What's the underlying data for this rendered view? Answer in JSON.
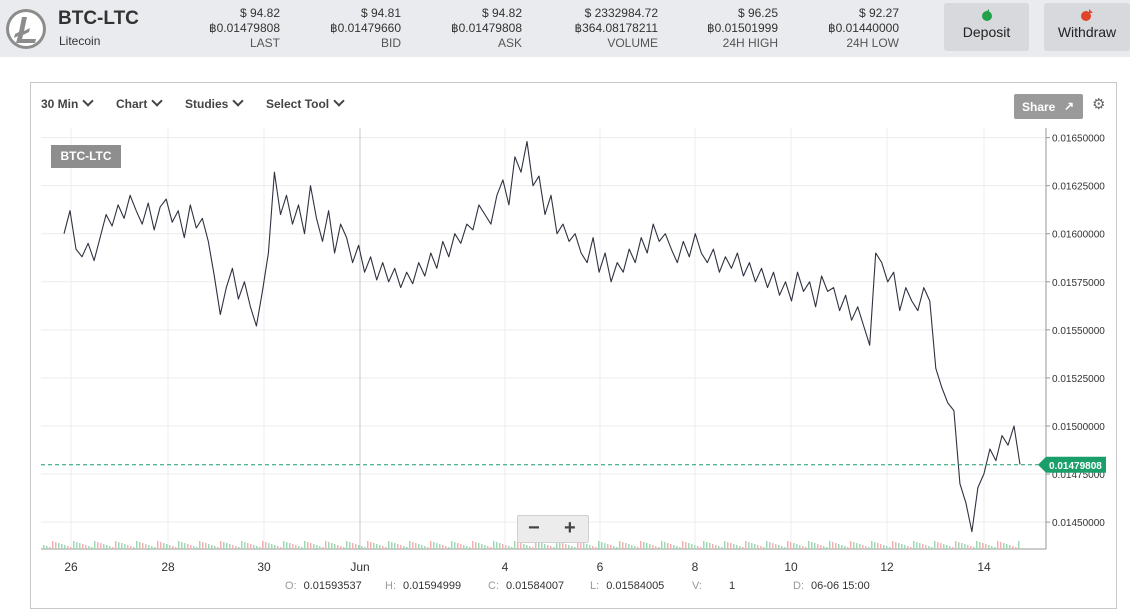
{
  "header": {
    "market": "BTC-LTC",
    "currency_name": "Litecoin",
    "stats": [
      {
        "usd": "$ 94.82",
        "btc": "฿0.01479808",
        "label": "LAST"
      },
      {
        "usd": "$ 94.81",
        "btc": "฿0.01479660",
        "label": "BID"
      },
      {
        "usd": "$ 94.82",
        "btc": "฿0.01479808",
        "label": "ASK"
      },
      {
        "usd": "$ 2332984.72",
        "btc": "฿364.08178211",
        "label": "VOLUME"
      },
      {
        "usd": "$ 96.25",
        "btc": "฿0.01501999",
        "label": "24H HIGH"
      },
      {
        "usd": "$ 92.27",
        "btc": "฿0.01440000",
        "label": "24H LOW"
      }
    ],
    "deposit_label": "Deposit",
    "withdraw_label": "Withdraw"
  },
  "toolbar": {
    "interval": "30 Min",
    "chart": "Chart",
    "studies": "Studies",
    "select_tool": "Select Tool",
    "share": "Share"
  },
  "chart_data": {
    "type": "line",
    "symbol": "BTC-LTC",
    "x_ticks": [
      "26",
      "28",
      "30",
      "Jun",
      "4",
      "6",
      "8",
      "10",
      "12",
      "14"
    ],
    "y_ticks": [
      "0.01650000",
      "0.01625000",
      "0.01600000",
      "0.01575000",
      "0.01550000",
      "0.01525000",
      "0.01500000",
      "0.01475000",
      "0.01450000"
    ],
    "ylim": [
      0.01436,
      0.01655
    ],
    "last_price": 0.01479808,
    "last_price_label": "0.01479808",
    "series": [
      {
        "values": [
          0.016,
          0.01612,
          0.01592,
          0.01588,
          0.01595,
          0.01586,
          0.01598,
          0.0161,
          0.01604,
          0.01615,
          0.01608,
          0.0162,
          0.01612,
          0.01605,
          0.01616,
          0.01602,
          0.01614,
          0.01618,
          0.01606,
          0.01612,
          0.01598,
          0.01615,
          0.01603,
          0.01608,
          0.01596,
          0.01578,
          0.01558,
          0.01572,
          0.01582,
          0.01566,
          0.01575,
          0.01562,
          0.01552,
          0.0157,
          0.0159,
          0.01632,
          0.0161,
          0.0162,
          0.01605,
          0.01615,
          0.016,
          0.01625,
          0.01608,
          0.01596,
          0.01612,
          0.0159,
          0.01605,
          0.01598,
          0.01585,
          0.01594,
          0.0158,
          0.01588,
          0.01576,
          0.01585,
          0.01575,
          0.01582,
          0.01572,
          0.0158,
          0.01574,
          0.01585,
          0.01578,
          0.0159,
          0.01582,
          0.01596,
          0.01588,
          0.016,
          0.01595,
          0.01605,
          0.01602,
          0.01615,
          0.0161,
          0.01605,
          0.0162,
          0.01628,
          0.01615,
          0.0164,
          0.01632,
          0.01648,
          0.01625,
          0.0163,
          0.0161,
          0.0162,
          0.016,
          0.01605,
          0.01596,
          0.016,
          0.0159,
          0.01585,
          0.01598,
          0.0158,
          0.0159,
          0.01575,
          0.01585,
          0.0158,
          0.01592,
          0.01585,
          0.01598,
          0.0159,
          0.01605,
          0.01596,
          0.016,
          0.01592,
          0.01585,
          0.01596,
          0.01588,
          0.016,
          0.0159,
          0.01585,
          0.01592,
          0.0158,
          0.01588,
          0.01582,
          0.0159,
          0.01578,
          0.01585,
          0.01575,
          0.01582,
          0.01572,
          0.0158,
          0.01568,
          0.01575,
          0.01565,
          0.0158,
          0.0157,
          0.01575,
          0.01562,
          0.01578,
          0.0157,
          0.01572,
          0.0156,
          0.01568,
          0.01555,
          0.01562,
          0.01552,
          0.01542,
          0.0159,
          0.01585,
          0.01575,
          0.0158,
          0.0156,
          0.01572,
          0.01565,
          0.0156,
          0.01572,
          0.01565,
          0.0153,
          0.0152,
          0.01512,
          0.01508,
          0.0147,
          0.0146,
          0.01445,
          0.01468,
          0.01475,
          0.01488,
          0.01482,
          0.01495,
          0.0149,
          0.015,
          0.0148
        ]
      }
    ],
    "ohlc": {
      "o": "0.01593537",
      "h": "0.01594999",
      "c": "0.01584007",
      "l": "0.01584005",
      "v": "1",
      "d": "06-06 15:00"
    },
    "ohlc_keys": {
      "o": "O:",
      "h": "H:",
      "c": "C:",
      "l": "L:",
      "v": "V:",
      "d": "D:"
    },
    "colors": {
      "line": "#2f3340",
      "last": "#1a9e6a",
      "grid": "#ececec",
      "vol_up": "#9ed8b4",
      "vol_down": "#f2b0b0"
    }
  }
}
